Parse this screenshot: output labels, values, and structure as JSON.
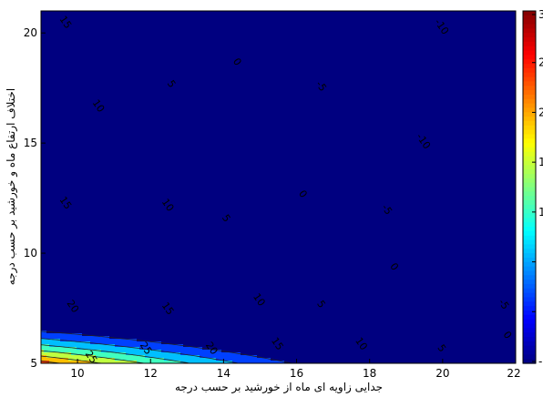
{
  "chart_data": {
    "type": "heatmap",
    "subtype": "filled-contour",
    "title": "",
    "xlabel": "جدایی زاویه ای ماه از خورشید بر حسب درجه",
    "ylabel": "اختلاف ارتفاع ماه و خورشید بر حسب درجه",
    "xlim": [
      9,
      22
    ],
    "ylim": [
      5,
      21
    ],
    "x_ticks": [
      10,
      12,
      14,
      16,
      18,
      20,
      22
    ],
    "y_ticks": [
      5,
      10,
      15,
      20
    ],
    "colormap": "jet",
    "colorbar": {
      "range": [
        -5,
        30
      ],
      "tick_labels": [
        "3",
        "2",
        "2",
        "1",
        "1",
        "",
        "",
        "-"
      ]
    },
    "levels": [
      -5,
      0,
      5,
      10,
      15,
      20,
      25
    ],
    "contour_labels": [
      {
        "value": "15",
        "x": 9.6,
        "y": 20.4
      },
      {
        "value": "10",
        "x": 10.5,
        "y": 16.6
      },
      {
        "value": "5",
        "x": 12.5,
        "y": 17.6
      },
      {
        "value": "0",
        "x": 14.3,
        "y": 18.6
      },
      {
        "value": "-5",
        "x": 16.6,
        "y": 17.5
      },
      {
        "value": "-10",
        "x": 19.9,
        "y": 20.2
      },
      {
        "value": "-10",
        "x": 19.4,
        "y": 15.0
      },
      {
        "value": "15",
        "x": 9.6,
        "y": 12.2
      },
      {
        "value": "10",
        "x": 12.4,
        "y": 12.1
      },
      {
        "value": "5",
        "x": 14.0,
        "y": 11.5
      },
      {
        "value": "0",
        "x": 16.1,
        "y": 12.6
      },
      {
        "value": "-5",
        "x": 18.4,
        "y": 11.9
      },
      {
        "value": "20",
        "x": 9.8,
        "y": 7.5
      },
      {
        "value": "15",
        "x": 12.4,
        "y": 7.4
      },
      {
        "value": "10",
        "x": 14.9,
        "y": 7.8
      },
      {
        "value": "5",
        "x": 16.6,
        "y": 7.6
      },
      {
        "value": "0",
        "x": 18.6,
        "y": 9.3
      },
      {
        "value": "-5",
        "x": 21.6,
        "y": 7.6
      },
      {
        "value": "25",
        "x": 10.3,
        "y": 5.2
      },
      {
        "value": "25",
        "x": 11.8,
        "y": 5.6
      },
      {
        "value": "20",
        "x": 13.6,
        "y": 5.6
      },
      {
        "value": "15",
        "x": 15.4,
        "y": 5.8
      },
      {
        "value": "10",
        "x": 17.7,
        "y": 5.8
      },
      {
        "value": "5",
        "x": 19.9,
        "y": 5.6
      },
      {
        "value": "0",
        "x": 21.7,
        "y": 6.2
      }
    ]
  }
}
